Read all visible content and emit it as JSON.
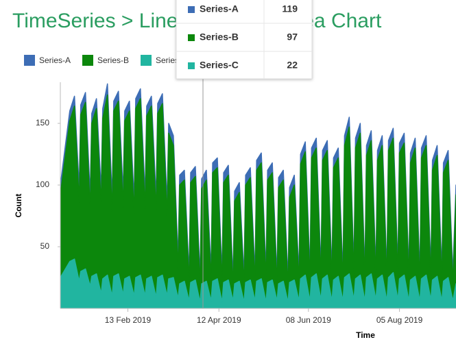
{
  "chart_data": {
    "type": "area",
    "title": "TimeSeries > Line & Stacked Area Chart",
    "x_label": "Time",
    "y_label": "Count",
    "xlim": [
      "2019-01-01",
      "2019-09-10"
    ],
    "xticks": [
      {
        "value": "2019-02-13",
        "label": "13 Feb 2019"
      },
      {
        "value": "2019-04-12",
        "label": "12 Apr 2019"
      },
      {
        "value": "2019-06-08",
        "label": "08 Jun 2019"
      },
      {
        "value": "2019-08-05",
        "label": "05 Aug 2019"
      }
    ],
    "ylim": [
      0,
      185
    ],
    "yticks": [
      50,
      100,
      150
    ],
    "legend": "top-left",
    "x": [
      "2019-01-01",
      "2019-01-07",
      "2019-01-10",
      "2019-01-13",
      "2019-01-14",
      "2019-01-17",
      "2019-01-20",
      "2019-01-21",
      "2019-01-24",
      "2019-01-27",
      "2019-01-28",
      "2019-01-31",
      "2019-02-03",
      "2019-02-04",
      "2019-02-07",
      "2019-02-10",
      "2019-02-11",
      "2019-02-14",
      "2019-02-17",
      "2019-02-18",
      "2019-02-21",
      "2019-02-24",
      "2019-02-25",
      "2019-02-28",
      "2019-03-03",
      "2019-03-04",
      "2019-03-07",
      "2019-03-10",
      "2019-03-11",
      "2019-03-14",
      "2019-03-17",
      "2019-03-18",
      "2019-03-21",
      "2019-03-24",
      "2019-03-25",
      "2019-03-28",
      "2019-03-31",
      "2019-04-01",
      "2019-04-04",
      "2019-04-07",
      "2019-04-08",
      "2019-04-11",
      "2019-04-14",
      "2019-04-15",
      "2019-04-18",
      "2019-04-21",
      "2019-04-22",
      "2019-04-25",
      "2019-04-28",
      "2019-04-29",
      "2019-05-02",
      "2019-05-05",
      "2019-05-06",
      "2019-05-09",
      "2019-05-12",
      "2019-05-13",
      "2019-05-16",
      "2019-05-19",
      "2019-05-20",
      "2019-05-23",
      "2019-05-26",
      "2019-05-27",
      "2019-05-30",
      "2019-06-02",
      "2019-06-03",
      "2019-06-06",
      "2019-06-09",
      "2019-06-10",
      "2019-06-13",
      "2019-06-16",
      "2019-06-17",
      "2019-06-20",
      "2019-06-23",
      "2019-06-24",
      "2019-06-27",
      "2019-06-30",
      "2019-07-01",
      "2019-07-04",
      "2019-07-07",
      "2019-07-08",
      "2019-07-11",
      "2019-07-14",
      "2019-07-15",
      "2019-07-18",
      "2019-07-21",
      "2019-07-22",
      "2019-07-25",
      "2019-07-28",
      "2019-07-29",
      "2019-08-01",
      "2019-08-04",
      "2019-08-05",
      "2019-08-08",
      "2019-08-11",
      "2019-08-12",
      "2019-08-15",
      "2019-08-18",
      "2019-08-19",
      "2019-08-22",
      "2019-08-25",
      "2019-08-26",
      "2019-08-29",
      "2019-09-01",
      "2019-09-02",
      "2019-09-05",
      "2019-09-08",
      "2019-09-10"
    ],
    "series": [
      {
        "name": "Series-A",
        "color": "#3d6db5",
        "values": [
          100,
          160,
          172,
          98,
          165,
          175,
          92,
          158,
          170,
          96,
          162,
          182,
          90,
          168,
          176,
          94,
          160,
          168,
          88,
          170,
          178,
          92,
          164,
          172,
          90,
          166,
          174,
          86,
          150,
          140,
          40,
          108,
          112,
          28,
          110,
          115,
          26,
          105,
          112,
          30,
          118,
          122,
          28,
          110,
          116,
          24,
          95,
          102,
          26,
          108,
          114,
          28,
          120,
          126,
          30,
          112,
          118,
          26,
          106,
          112,
          24,
          98,
          108,
          28,
          125,
          135,
          30,
          130,
          138,
          32,
          128,
          136,
          30,
          122,
          130,
          28,
          140,
          155,
          34,
          138,
          150,
          30,
          132,
          144,
          32,
          128,
          140,
          30,
          136,
          146,
          34,
          134,
          142,
          30,
          126,
          138,
          28,
          130,
          140,
          32,
          120,
          132,
          30,
          118,
          128,
          28,
          100
        ]
      },
      {
        "name": "Series-B",
        "color": "#0c870c",
        "values": [
          92,
          152,
          164,
          86,
          157,
          167,
          80,
          150,
          162,
          84,
          154,
          173,
          78,
          160,
          168,
          82,
          152,
          160,
          76,
          162,
          170,
          80,
          156,
          164,
          78,
          158,
          166,
          74,
          142,
          132,
          30,
          100,
          104,
          20,
          102,
          107,
          18,
          97,
          104,
          22,
          110,
          114,
          20,
          102,
          108,
          16,
          87,
          94,
          18,
          100,
          106,
          20,
          112,
          118,
          22,
          104,
          110,
          18,
          98,
          104,
          16,
          90,
          100,
          20,
          117,
          127,
          22,
          122,
          130,
          24,
          120,
          128,
          22,
          114,
          122,
          20,
          132,
          147,
          26,
          130,
          142,
          22,
          124,
          136,
          24,
          120,
          132,
          22,
          128,
          138,
          26,
          126,
          134,
          22,
          118,
          130,
          20,
          122,
          132,
          24,
          112,
          124,
          22,
          110,
          120,
          20,
          92
        ]
      },
      {
        "name": "Series-C",
        "color": "#21b5a0",
        "values": [
          25,
          38,
          40,
          22,
          30,
          32,
          18,
          26,
          28,
          12,
          24,
          27,
          10,
          26,
          28,
          11,
          24,
          26,
          10,
          25,
          27,
          10,
          24,
          26,
          9,
          25,
          27,
          10,
          24,
          25,
          8,
          20,
          22,
          6,
          21,
          23,
          5,
          20,
          22,
          6,
          22,
          24,
          5,
          21,
          23,
          6,
          20,
          22,
          5,
          21,
          23,
          6,
          22,
          24,
          5,
          21,
          23,
          6,
          20,
          22,
          5,
          21,
          23,
          6,
          24,
          27,
          6,
          25,
          28,
          7,
          24,
          27,
          6,
          23,
          26,
          6,
          25,
          28,
          7,
          24,
          27,
          6,
          25,
          28,
          7,
          24,
          27,
          6,
          25,
          29,
          7,
          24,
          27,
          6,
          23,
          26,
          6,
          24,
          27,
          7,
          23,
          26,
          6,
          22,
          25,
          6,
          20
        ]
      }
    ]
  },
  "tooltip": {
    "rows": [
      {
        "name": "Series-A",
        "value": 119
      },
      {
        "name": "Series-B",
        "value": 97
      },
      {
        "name": "Series-C",
        "value": 22
      }
    ]
  }
}
